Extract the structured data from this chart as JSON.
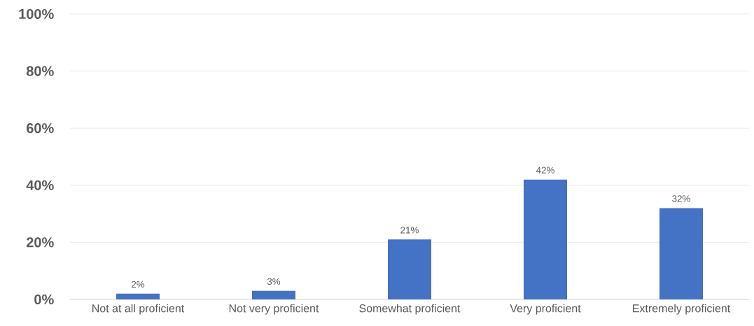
{
  "chart_data": {
    "type": "bar",
    "categories": [
      "Not at all proficient",
      "Not very proficient",
      "Somewhat proficient",
      "Very proficient",
      "Extremely proficient"
    ],
    "values": [
      2,
      3,
      21,
      42,
      32
    ],
    "value_labels": [
      "2%",
      "3%",
      "21%",
      "42%",
      "32%"
    ],
    "color": "#4472c4",
    "ylim": [
      0,
      100
    ],
    "yticks": [
      {
        "value": 0,
        "label": "0%"
      },
      {
        "value": 20,
        "label": "20%"
      },
      {
        "value": 40,
        "label": "40%"
      },
      {
        "value": 60,
        "label": "60%"
      },
      {
        "value": 80,
        "label": "80%"
      },
      {
        "value": 100,
        "label": "100%"
      }
    ],
    "grid": "y",
    "legend": false
  }
}
